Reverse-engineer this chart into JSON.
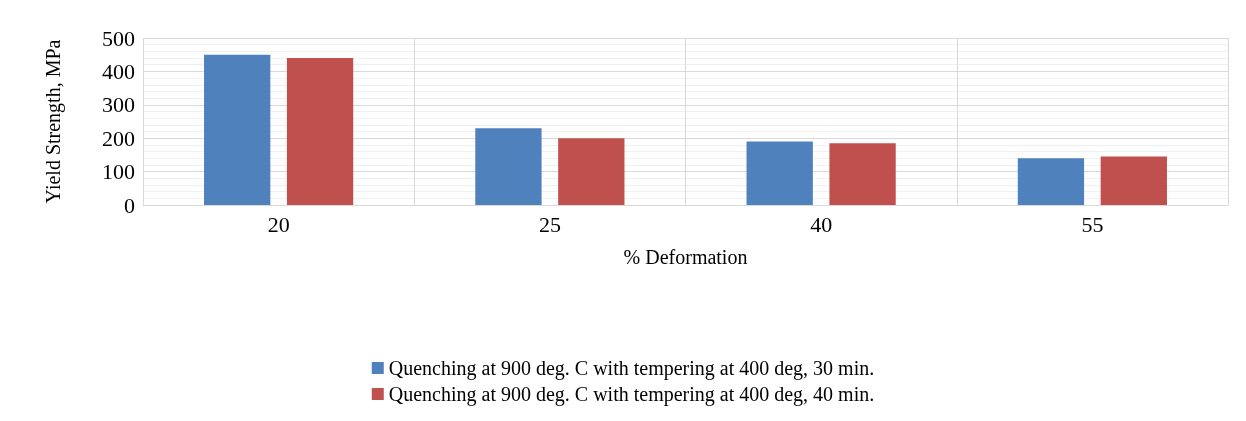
{
  "chart_data": {
    "type": "bar",
    "xlabel": "% Deformation",
    "ylabel": "Yield Strength, MPa",
    "categories": [
      "20",
      "25",
      "40",
      "55"
    ],
    "series": [
      {
        "name": "Quenching at 900 deg. C with tempering at 400 deg, 30 min.",
        "color": "#4f81bd",
        "values": [
          450,
          230,
          190,
          140
        ]
      },
      {
        "name": "Quenching at 900 deg. C with tempering at 400 deg, 40 min.",
        "color": "#c0504d",
        "values": [
          440,
          200,
          185,
          145
        ]
      }
    ],
    "ylim": [
      0,
      500
    ],
    "yticks": [
      0,
      100,
      200,
      300,
      400,
      500
    ],
    "grid": true,
    "legend": "bottom"
  }
}
